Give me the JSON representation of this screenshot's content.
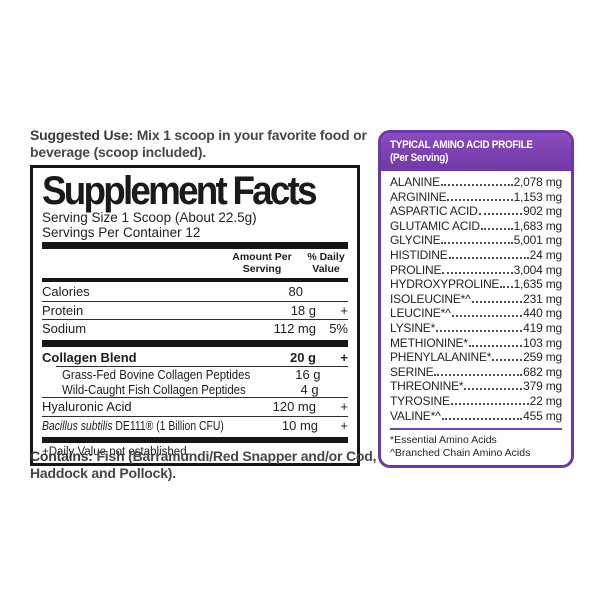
{
  "colors": {
    "accent_purple": "#7A44B0",
    "panel_border_purple": "#6D36AB",
    "separator_purple": "#6E41C6",
    "ink": "#161616"
  },
  "suggested_use": {
    "label": "Suggested Use:",
    "text": " Mix 1 scoop in your favorite food or beverage (scoop included)."
  },
  "supplement_facts": {
    "title": "Supplement Facts",
    "serving_size": "Serving Size 1 Scoop (About 22.5g)",
    "servings_per_container": "Servings Per Container 12",
    "columns": {
      "amount": "Amount Per\nServing",
      "daily_value": "% Daily\nValue"
    },
    "rows": [
      {
        "name": "Calories",
        "amount": "80",
        "dv": ""
      },
      {
        "name": "Protein",
        "amount": "18 g",
        "dv": "+"
      },
      {
        "name": "Sodium",
        "amount": "112 mg",
        "dv": "5%"
      },
      {
        "name": "Collagen Blend",
        "amount": "20 g",
        "dv": "+"
      },
      {
        "name": "Grass-Fed Bovine Collagen Peptides",
        "amount": "16 g",
        "dv": ""
      },
      {
        "name": "Wild-Caught Fish Collagen Peptides",
        "amount": "4 g",
        "dv": ""
      },
      {
        "name": "Hyaluronic Acid",
        "amount": "120 mg",
        "dv": "+"
      },
      {
        "name_italic": "Bacillus subtilis",
        "name_rest": " DE111® (1 Billion CFU)",
        "amount": "10 mg",
        "dv": "+"
      }
    ],
    "footnote": "+Daily Value not established."
  },
  "contains": {
    "label": "Contains:",
    "text": " Fish (Barramundi/Red Snapper and/or Cod, Haddock and Pollock)."
  },
  "amino_acid_profile": {
    "title": "TYPICAL AMINO ACID PROFILE",
    "subtitle": "(Per Serving)",
    "rows": [
      {
        "name": "ALANINE",
        "value": "2,078 mg"
      },
      {
        "name": "ARGININE",
        "value": "1,153 mg"
      },
      {
        "name": "ASPARTIC ACID",
        "value": "902 mg"
      },
      {
        "name": "GLUTAMIC ACID",
        "value": "1,683 mg"
      },
      {
        "name": "GLYCINE",
        "value": "5,001 mg"
      },
      {
        "name": "HISTIDINE",
        "value": "24 mg"
      },
      {
        "name": "PROLINE",
        "value": "3,004 mg"
      },
      {
        "name": "HYDROXYPROLINE",
        "value": "1,635 mg"
      },
      {
        "name": "ISOLEUCINE*^",
        "value": "231 mg"
      },
      {
        "name": "LEUCINE*^",
        "value": "440 mg"
      },
      {
        "name": "LYSINE*",
        "value": "419 mg"
      },
      {
        "name": "METHIONINE*",
        "value": "103 mg"
      },
      {
        "name": "PHENYLALANINE*",
        "value": "259 mg"
      },
      {
        "name": "SERINE",
        "value": "682 mg"
      },
      {
        "name": "THREONINE*",
        "value": "379 mg"
      },
      {
        "name": "TYROSINE",
        "value": "22 mg"
      },
      {
        "name": "VALINE*^",
        "value": "455 mg"
      }
    ],
    "footnotes": [
      "*Essential Amino Acids",
      "^Branched Chain Amino Acids"
    ]
  }
}
